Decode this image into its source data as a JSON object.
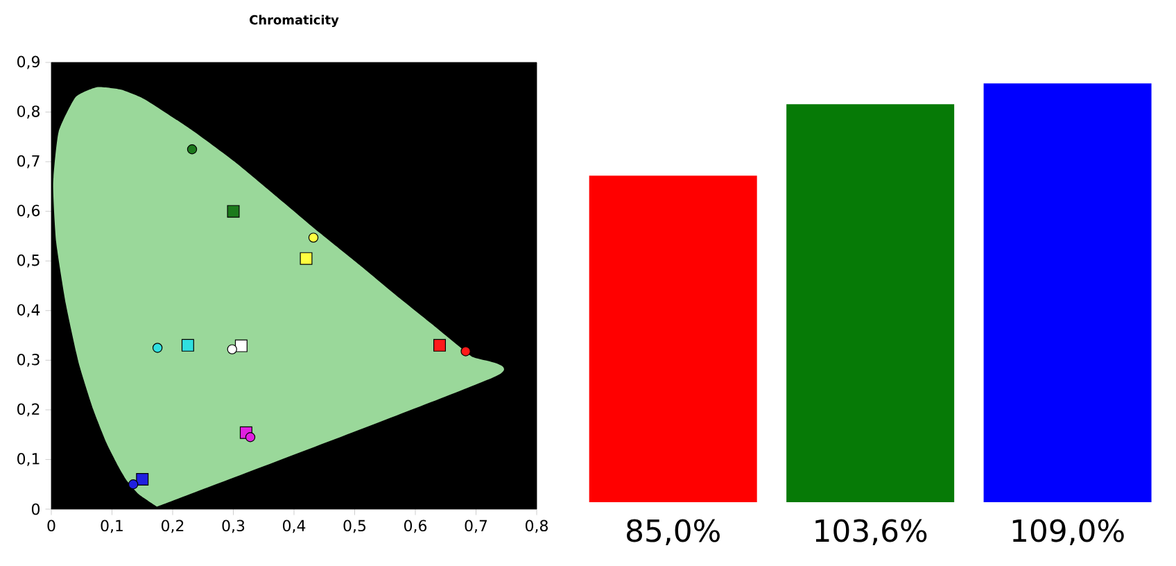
{
  "chart_data": [
    {
      "type": "scatter",
      "title": "Chromaticity",
      "xlim": [
        0,
        0.8
      ],
      "ylim": [
        0,
        0.9
      ],
      "xticks": [
        0,
        {
          "value": 0.1,
          "label": "0,1"
        },
        {
          "value": 0.2,
          "label": "0,2"
        },
        {
          "value": 0.3,
          "label": "0,3"
        },
        {
          "value": 0.4,
          "label": "0,4"
        },
        {
          "value": 0.5,
          "label": "0,5"
        },
        {
          "value": 0.6,
          "label": "0,6"
        },
        {
          "value": 0.7,
          "label": "0,7"
        },
        {
          "value": 0.8,
          "label": "0,8"
        }
      ],
      "yticks": [
        0,
        {
          "value": 0.1,
          "label": "0,1"
        },
        {
          "value": 0.2,
          "label": "0,2"
        },
        {
          "value": 0.3,
          "label": "0,3"
        },
        {
          "value": 0.4,
          "label": "0,4"
        },
        {
          "value": 0.5,
          "label": "0,5"
        },
        {
          "value": 0.6,
          "label": "0,6"
        },
        {
          "value": 0.7,
          "label": "0,7"
        },
        {
          "value": 0.8,
          "label": "0,8"
        },
        {
          "value": 0.9,
          "label": "0,9"
        }
      ],
      "series": [
        {
          "type": "area",
          "color": "#9ad89a",
          "x": [
            0.174,
            0.144,
            0.124,
            0.11,
            0.091,
            0.069,
            0.045,
            0.024,
            0.008,
            0.003,
            0.012,
            0.04,
            0.075,
            0.115,
            0.155,
            0.23,
            0.302,
            0.373,
            0.444,
            0.513,
            0.575,
            0.627,
            0.692,
            0.733,
            0.174
          ],
          "values": [
            0.005,
            0.03,
            0.058,
            0.087,
            0.133,
            0.201,
            0.295,
            0.413,
            0.538,
            0.655,
            0.76,
            0.83,
            0.85,
            0.845,
            0.825,
            0.765,
            0.7,
            0.628,
            0.555,
            0.487,
            0.424,
            0.373,
            0.308,
            0.268,
            0.005
          ]
        },
        {
          "type": "scatter",
          "marker": "square",
          "x": [
            0.3,
            0.42,
            0.225,
            0.313,
            0.64,
            0.321,
            0.15
          ],
          "values": [
            0.6,
            0.505,
            0.33,
            0.329,
            0.33,
            0.154,
            0.06
          ],
          "colors": [
            "#1c7a1c",
            "#ffff40",
            "#30e0e0",
            "#ffffff",
            "#ff1a1a",
            "#e020e0",
            "#2020e0"
          ]
        },
        {
          "type": "scatter",
          "marker": "circle",
          "x": [
            0.232,
            0.432,
            0.175,
            0.298,
            0.683,
            0.328,
            0.135
          ],
          "values": [
            0.725,
            0.547,
            0.325,
            0.322,
            0.318,
            0.145,
            0.05
          ],
          "colors": [
            "#1c7a1c",
            "#ffff40",
            "#30e0e0",
            "#ffffff",
            "#ff1a1a",
            "#e020e0",
            "#2020e0"
          ]
        }
      ]
    },
    {
      "type": "bar",
      "categories": [
        null,
        null,
        null
      ],
      "values": [
        85.0,
        103.6,
        109.0
      ],
      "colors": [
        "#ff0000",
        "#067a06",
        "#0000ff"
      ],
      "value_labels": [
        "85,0%",
        "103,6%",
        "109,0%"
      ]
    }
  ]
}
